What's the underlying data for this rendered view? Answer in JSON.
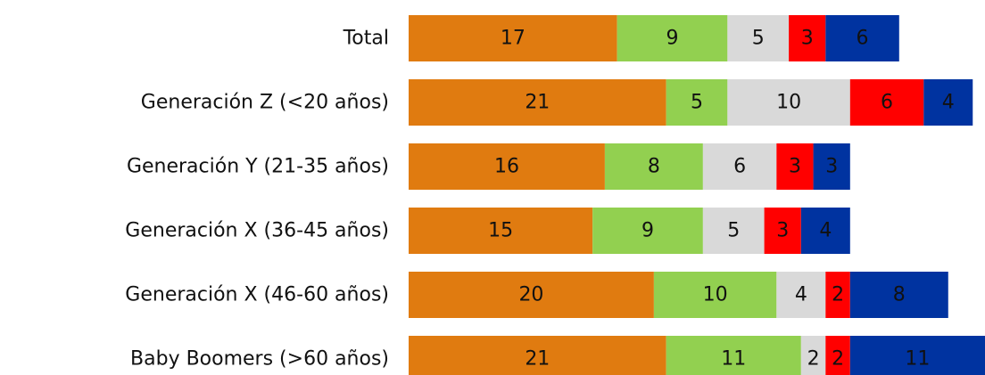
{
  "chart_data": {
    "type": "stacked-bar-horizontal",
    "categories": [
      "Total",
      "Generación Z (<20 años)",
      "Generación Y (21-35 años)",
      "Generación X (36-45 años)",
      "Generación X (46-60 años)",
      "Baby Boomers (>60 años)"
    ],
    "series": [
      {
        "color": "#e07b10",
        "values": [
          17,
          21,
          16,
          15,
          20,
          21
        ]
      },
      {
        "color": "#92d050",
        "values": [
          9,
          5,
          8,
          9,
          10,
          11
        ]
      },
      {
        "color": "#d9d9d9",
        "values": [
          5,
          10,
          6,
          5,
          4,
          2
        ]
      },
      {
        "color": "#ff0000",
        "values": [
          3,
          6,
          3,
          3,
          2,
          2
        ]
      },
      {
        "color": "#0033a0",
        "values": [
          6,
          4,
          3,
          4,
          8,
          11
        ]
      }
    ]
  }
}
